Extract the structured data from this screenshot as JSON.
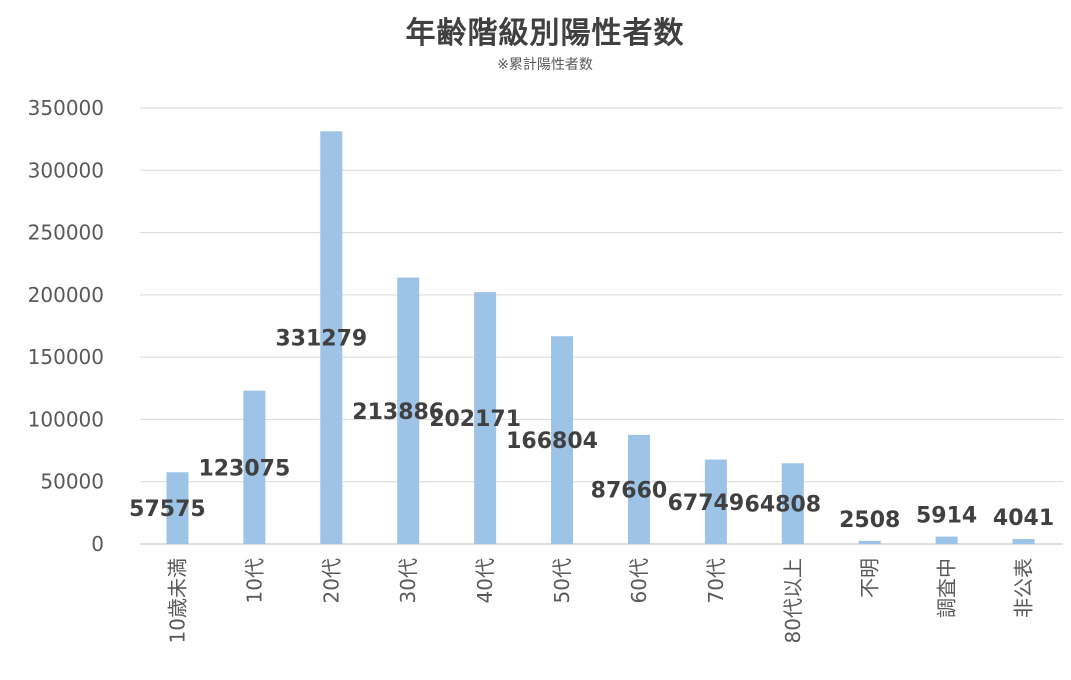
{
  "chart_data": {
    "type": "bar",
    "title": "年齢階級別陽性者数",
    "subtitle": "※累計陽性者数",
    "categories": [
      "10歳未満",
      "10代",
      "20代",
      "30代",
      "40代",
      "50代",
      "60代",
      "70代",
      "80代以上",
      "不明",
      "調査中",
      "非公表"
    ],
    "values": [
      57575,
      123075,
      331279,
      213886,
      202171,
      166804,
      87660,
      67749,
      64808,
      2508,
      5914,
      4041
    ],
    "data_labels": [
      "57575",
      "123075",
      "331279",
      "213886",
      "202171",
      "166804",
      "87660",
      "67749",
      "64808",
      "2508",
      "5914",
      "4041"
    ],
    "yticks": [
      "0",
      "50000",
      "100000",
      "150000",
      "200000",
      "250000",
      "300000",
      "350000"
    ],
    "ylim": [
      0,
      350000
    ],
    "grid": true,
    "legend": "none",
    "bar_color": "#9dc3e6"
  }
}
